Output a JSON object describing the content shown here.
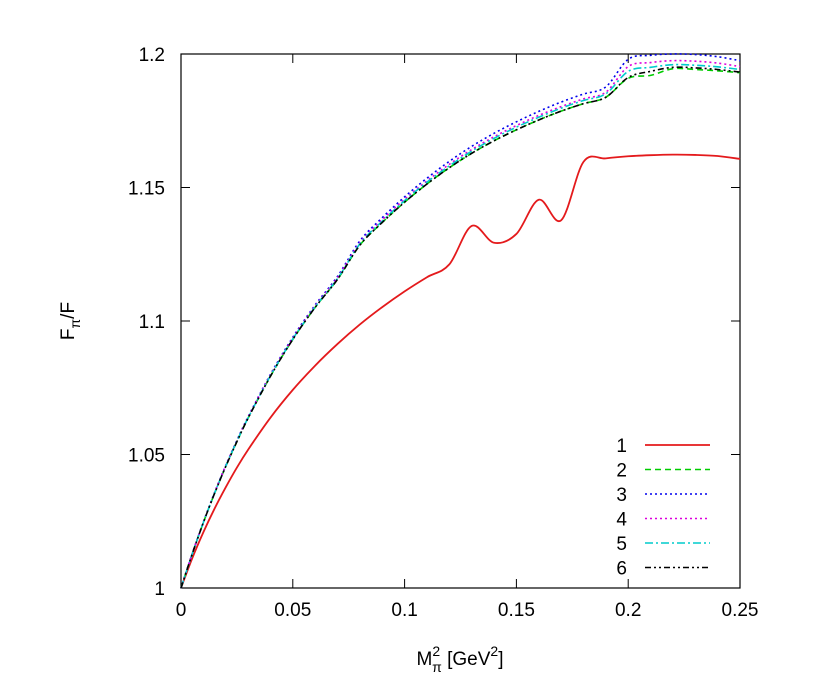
{
  "chart_data": {
    "type": "line",
    "xlabel": {
      "main": "M",
      "sub": "π",
      "sup": "2",
      "rest": " [GeV",
      "rest_sup": "2",
      "close": "]"
    },
    "ylabel": {
      "main": "F",
      "sub": "π",
      "rest": "/F"
    },
    "xlim": [
      0,
      0.25
    ],
    "ylim": [
      1,
      1.2
    ],
    "x_ticks": [
      0,
      0.05,
      0.1,
      0.15,
      0.2,
      0.25
    ],
    "x_tick_labels": [
      "0",
      "0.05",
      "0.1",
      "0.15",
      "0.2",
      "0.25"
    ],
    "y_ticks": [
      1,
      1.05,
      1.1,
      1.15,
      1.2
    ],
    "y_tick_labels": [
      "1",
      "1.05",
      "1.1",
      "1.15",
      "1.2"
    ],
    "grid": false,
    "legend_position": "bottom-right",
    "x": [
      0,
      0.005,
      0.01,
      0.015,
      0.02,
      0.025,
      0.03,
      0.04,
      0.05,
      0.06,
      0.07,
      0.08,
      0.09,
      0.1,
      0.11,
      0.12,
      0.13,
      0.14,
      0.15,
      0.16,
      0.17,
      0.18,
      0.19,
      0.2,
      0.21,
      0.22,
      0.23,
      0.24,
      0.25
    ],
    "series": [
      {
        "name": "1",
        "color": "#e41a1c",
        "dash": "solid",
        "values": [
          1.0,
          1.0111,
          1.0209,
          1.0297,
          1.0377,
          1.0451,
          1.0518,
          1.0638,
          1.0742,
          1.0833,
          1.0914,
          1.0987,
          1.1052,
          1.1111,
          1.1164,
          1.1212,
          1.1356,
          1.1293,
          1.1326,
          1.1454,
          1.1377,
          1.1596,
          1.1609,
          1.1617,
          1.1621,
          1.1623,
          1.1622,
          1.1618,
          1.1607
        ]
      },
      {
        "name": "2",
        "color": "#00cc00",
        "dash": "dashed",
        "values": [
          1.0,
          1.0127,
          1.0245,
          1.0354,
          1.0455,
          1.0548,
          1.0636,
          1.0793,
          1.0931,
          1.1051,
          1.1156,
          1.1284,
          1.1369,
          1.1445,
          1.1513,
          1.1574,
          1.1628,
          1.1675,
          1.1716,
          1.1753,
          1.1786,
          1.1814,
          1.1838,
          1.1909,
          1.192,
          1.1945,
          1.1942,
          1.1937,
          1.193
        ]
      },
      {
        "name": "3",
        "color": "#0000ee",
        "dash": "dotted",
        "values": [
          1.0,
          1.0128,
          1.0247,
          1.0357,
          1.0459,
          1.0553,
          1.0641,
          1.08,
          1.0939,
          1.106,
          1.1167,
          1.13,
          1.1387,
          1.1465,
          1.1535,
          1.1598,
          1.1654,
          1.1703,
          1.1746,
          1.1785,
          1.182,
          1.185,
          1.1877,
          1.198,
          1.1995,
          1.2,
          1.1998,
          1.199,
          1.1975
        ]
      },
      {
        "name": "4",
        "color": "#dd00dd",
        "dash": "dotted",
        "values": [
          1.0,
          1.0128,
          1.0246,
          1.0356,
          1.0457,
          1.0551,
          1.0639,
          1.0797,
          1.0935,
          1.1056,
          1.1162,
          1.1293,
          1.1379,
          1.1456,
          1.1525,
          1.1587,
          1.1642,
          1.169,
          1.1732,
          1.177,
          1.1803,
          1.1832,
          1.1857,
          1.1953,
          1.1968,
          1.1975,
          1.1973,
          1.1966,
          1.1953
        ]
      },
      {
        "name": "5",
        "color": "#00cccc",
        "dash": "dashdot",
        "values": [
          1.0,
          1.0127,
          1.0245,
          1.0355,
          1.0456,
          1.055,
          1.0637,
          1.0795,
          1.0933,
          1.1053,
          1.1159,
          1.1289,
          1.1374,
          1.1451,
          1.152,
          1.1581,
          1.1636,
          1.1684,
          1.1726,
          1.1763,
          1.1797,
          1.1826,
          1.1851,
          1.1935,
          1.195,
          1.196,
          1.1958,
          1.1952,
          1.1942
        ]
      },
      {
        "name": "6",
        "color": "#000000",
        "dash": "dashdotdot",
        "values": [
          1.0,
          1.0127,
          1.0245,
          1.0354,
          1.0455,
          1.0548,
          1.0636,
          1.0793,
          1.0931,
          1.1051,
          1.1156,
          1.1284,
          1.1369,
          1.1445,
          1.1513,
          1.1574,
          1.1628,
          1.1675,
          1.1716,
          1.1753,
          1.1786,
          1.1814,
          1.1838,
          1.1912,
          1.1935,
          1.195,
          1.1948,
          1.1942,
          1.1932
        ]
      }
    ]
  }
}
